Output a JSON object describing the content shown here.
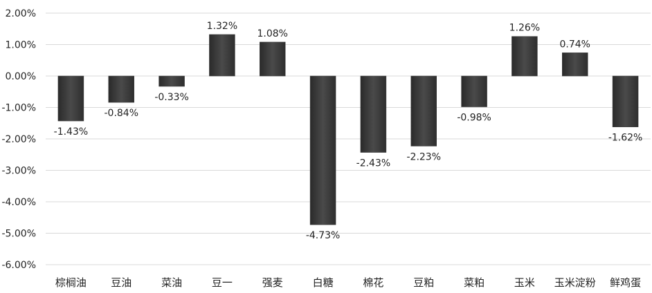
{
  "chart_data": {
    "type": "bar",
    "categories": [
      "棕榈油",
      "豆油",
      "菜油",
      "豆一",
      "强麦",
      "白糖",
      "棉花",
      "豆粕",
      "菜粕",
      "玉米",
      "玉米淀粉",
      "鲜鸡蛋"
    ],
    "values": [
      -1.43,
      -0.84,
      -0.33,
      1.32,
      1.08,
      -4.73,
      -2.43,
      -2.23,
      -0.98,
      1.26,
      0.74,
      -1.62
    ],
    "data_labels": [
      "-1.43%",
      "-0.84%",
      "-0.33%",
      "1.32%",
      "1.08%",
      "-4.73%",
      "-2.43%",
      "-2.23%",
      "-0.98%",
      "1.26%",
      "0.74%",
      "-1.62%"
    ],
    "y_ticks": [
      2,
      1,
      0,
      -1,
      -2,
      -3,
      -4,
      -5,
      -6
    ],
    "y_tick_labels": [
      "2.00%",
      "1.00%",
      "0.00%",
      "-1.00%",
      "-2.00%",
      "-3.00%",
      "-4.00%",
      "-5.00%",
      "-6.00%"
    ],
    "ylim": [
      -6,
      2
    ],
    "grid": true,
    "bar_color": "#3f3f3f",
    "title": "",
    "xlabel": "",
    "ylabel": ""
  }
}
